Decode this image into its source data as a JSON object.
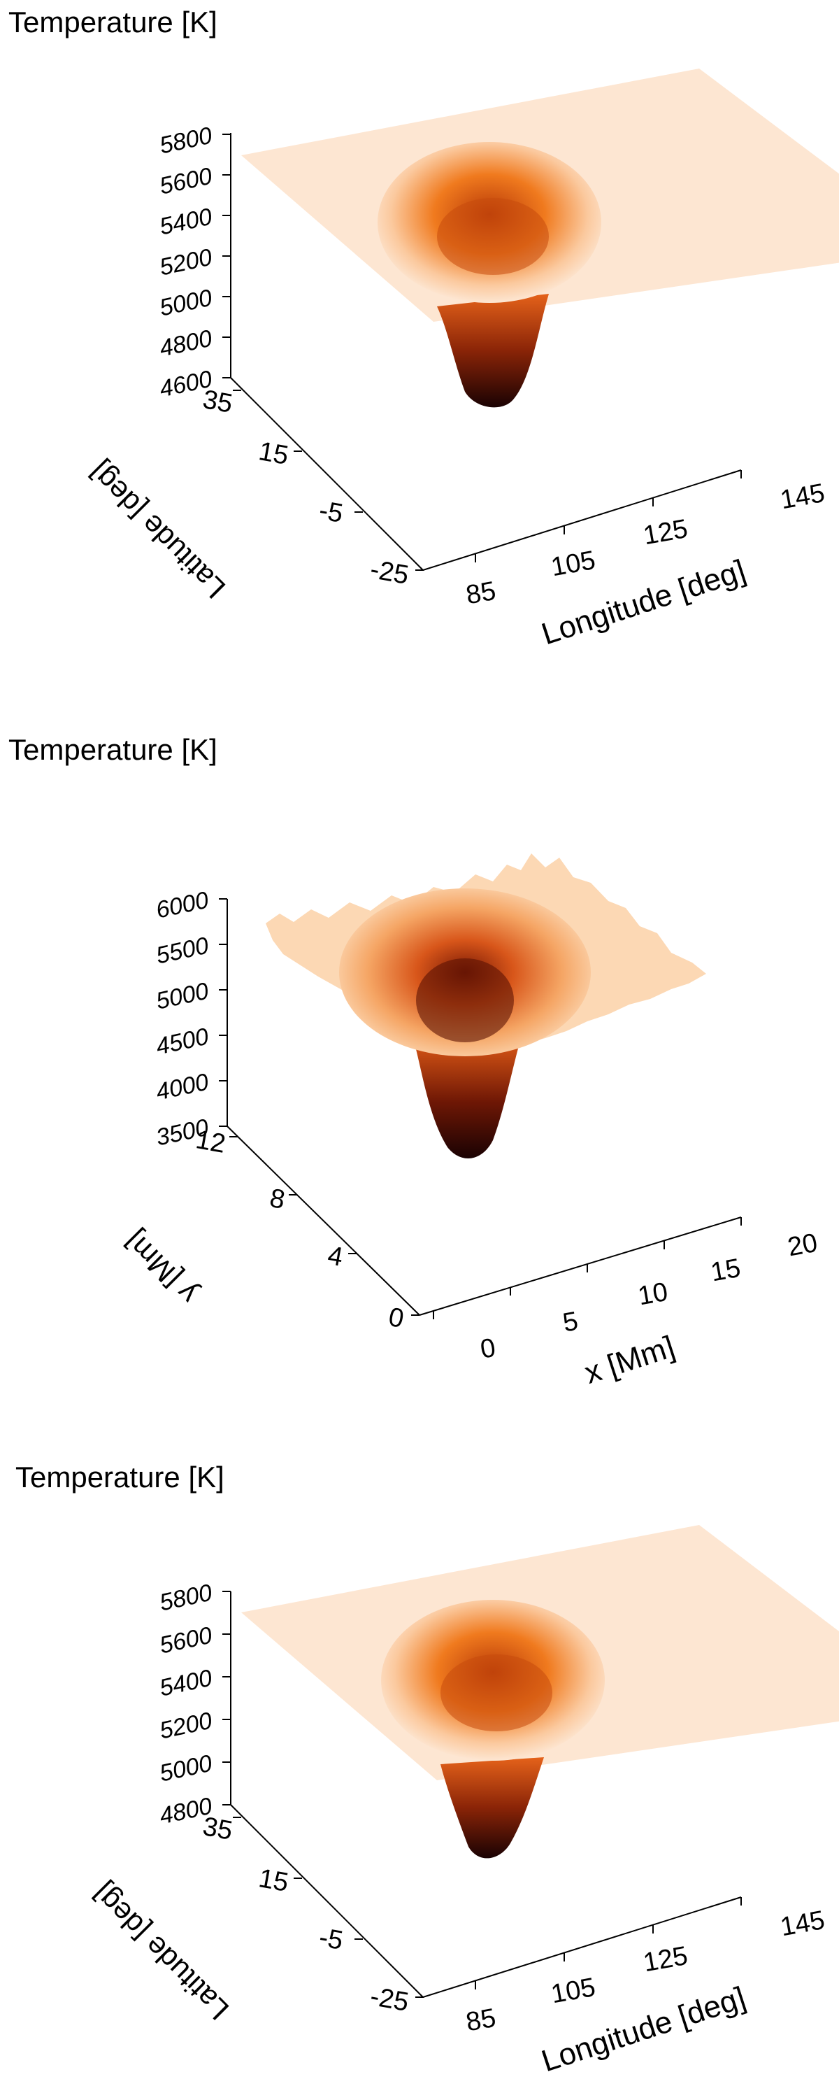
{
  "chart_data": [
    {
      "type": "surface",
      "title": "Temperature [K]",
      "z_ticks": [
        "5800",
        "5600",
        "5400",
        "5200",
        "5000",
        "4800",
        "4600"
      ],
      "zlim": [
        4600,
        5800
      ],
      "y_label": "Latitude [deg]",
      "y_ticks": [
        "35",
        "15",
        "-5",
        "-25"
      ],
      "x_label": "Longitude [deg]",
      "x_ticks": [
        "85",
        "105",
        "125",
        "145"
      ],
      "colors": {
        "high": "#fde6d2",
        "mid": "#ef7a1e",
        "low": "#1a0203"
      }
    },
    {
      "type": "surface",
      "title": "Temperature [K]",
      "z_ticks": [
        "6000",
        "5500",
        "5000",
        "4500",
        "4000",
        "3500"
      ],
      "zlim": [
        3500,
        6000
      ],
      "y_label": "y [Mm]",
      "y_ticks": [
        "12",
        "8",
        "4",
        "0"
      ],
      "x_label": "x [Mm]",
      "x_ticks": [
        "0",
        "5",
        "10",
        "15",
        "20"
      ],
      "colors": {
        "high": "#fde6d2",
        "mid": "#ef7a1e",
        "low": "#1a0203"
      }
    },
    {
      "type": "surface",
      "title": "Temperature [K]",
      "z_ticks": [
        "5800",
        "5600",
        "5400",
        "5200",
        "5000",
        "4800"
      ],
      "zlim": [
        4800,
        5800
      ],
      "y_label": "Latitude [deg]",
      "y_ticks": [
        "35",
        "15",
        "-5",
        "-25"
      ],
      "x_label": "Longitude [deg]",
      "x_ticks": [
        "85",
        "105",
        "125",
        "145"
      ],
      "colors": {
        "high": "#fde6d2",
        "mid": "#ef7a1e",
        "low": "#1a0203"
      }
    }
  ]
}
